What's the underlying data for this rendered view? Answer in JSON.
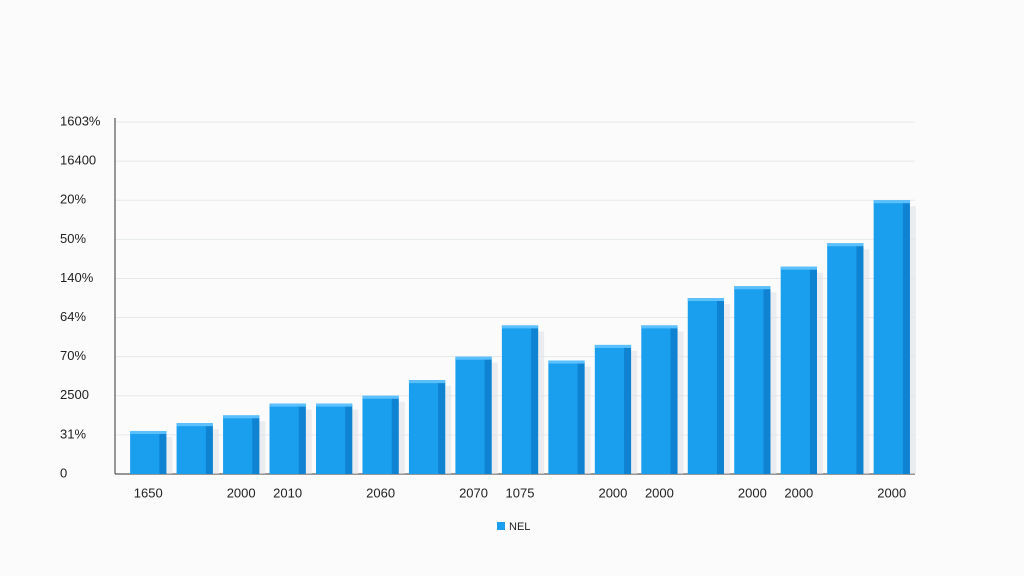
{
  "chart_data": {
    "type": "bar",
    "categories": [
      "1650",
      null,
      "2000",
      "2010",
      null,
      "2060",
      null,
      "2070",
      "1075",
      null,
      "2000",
      "2000",
      null,
      "2000",
      "2000",
      null,
      "2000"
    ],
    "series": [
      {
        "name": "NEL",
        "color": "#1a9fef",
        "values": [
          1.1,
          1.3,
          1.5,
          1.8,
          1.8,
          2.0,
          2.4,
          3.0,
          3.8,
          2.9,
          3.3,
          3.8,
          4.5,
          4.8,
          5.3,
          5.9,
          7.0
        ]
      }
    ],
    "ylim": [
      0,
      9
    ],
    "yticks": [
      0,
      {
        "value": 1,
        "label": "31%"
      },
      {
        "value": 2,
        "label": "2500"
      },
      {
        "value": 3,
        "label": "70%"
      },
      {
        "value": 4,
        "label": "64%"
      },
      {
        "value": 5,
        "label": "140%"
      },
      {
        "value": 6,
        "label": "50%"
      },
      {
        "value": 7,
        "label": "20%"
      },
      {
        "value": 8,
        "label": "16400"
      },
      {
        "value": 9,
        "label": "1603%"
      }
    ],
    "grid": true
  }
}
